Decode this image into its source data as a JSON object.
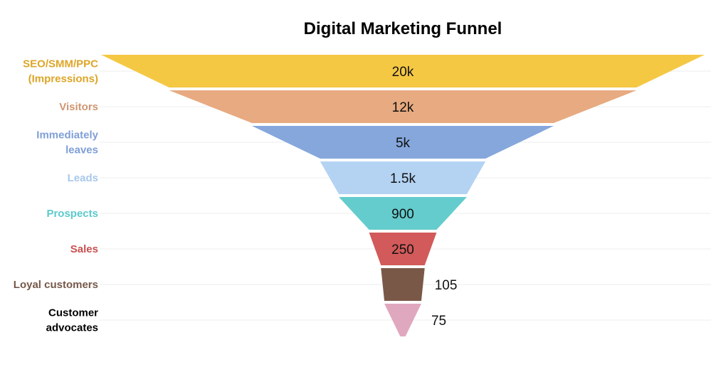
{
  "chart_data": {
    "type": "funnel",
    "title": "Digital Marketing Funnel",
    "stages": [
      {
        "label": [
          "SEO/SMM/PPC",
          "(Impressions)"
        ],
        "value": 20000,
        "display": "20k",
        "color": "#F5C844"
      },
      {
        "label": [
          "Visitors"
        ],
        "value": 12000,
        "display": "12k",
        "color": "#E8AA80"
      },
      {
        "label": [
          "Immediately",
          "leaves"
        ],
        "value": 5000,
        "display": "5k",
        "color": "#85A7DC"
      },
      {
        "label": [
          "Leads"
        ],
        "value": 1500,
        "display": "1.5k",
        "color": "#B4D3F3"
      },
      {
        "label": [
          "Prospects"
        ],
        "value": 900,
        "display": "900",
        "color": "#64CCCC"
      },
      {
        "label": [
          "Sales"
        ],
        "value": 250,
        "display": "250",
        "color": "#D25A5A"
      },
      {
        "label": [
          "Loyal customers"
        ],
        "value": 105,
        "display": "105",
        "color": "#7A5848"
      },
      {
        "label": [
          "Customer",
          "advocates"
        ],
        "value": 75,
        "display": "75",
        "color": "#E0A8BE"
      }
    ],
    "label_colors": [
      "#DDA527",
      "#CF9672",
      "#7F9FD7",
      "#A9C8EB",
      "#5CC9CC",
      "#C94F4F",
      "#75584A",
      "#000000"
    ]
  }
}
